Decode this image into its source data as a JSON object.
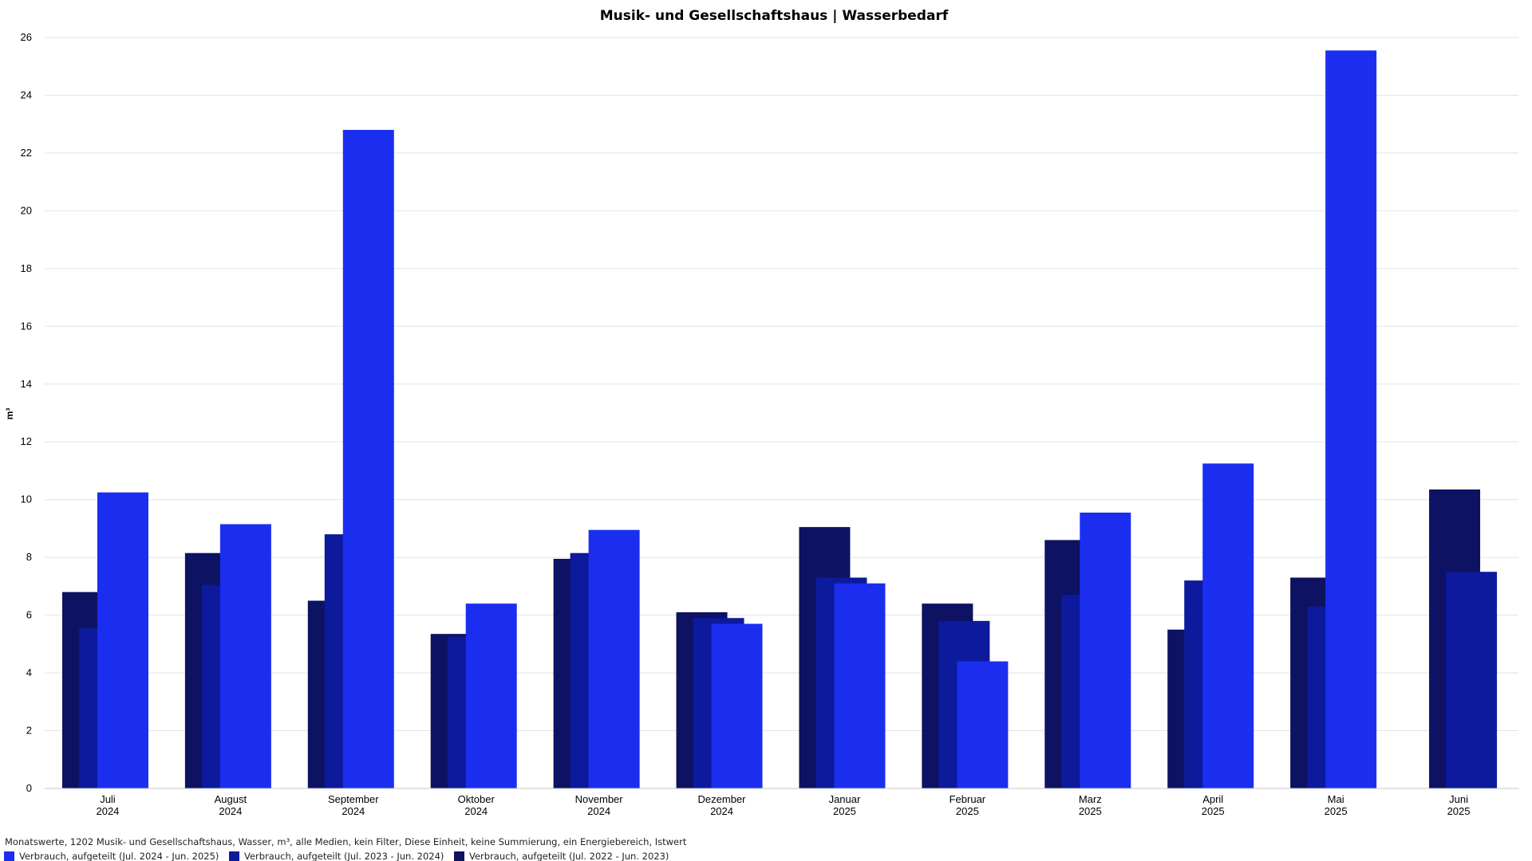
{
  "chart_data": {
    "type": "bar",
    "title": "Musik- und Gesellschaftshaus | Wasserbedarf",
    "ylabel": "m³",
    "xlabel": "",
    "ylim": [
      0,
      26
    ],
    "yticks": [
      0,
      2,
      4,
      6,
      8,
      10,
      12,
      14,
      16,
      18,
      20,
      22,
      24,
      26
    ],
    "grid": true,
    "legend_position": "bottom-left",
    "categories": [
      {
        "month": "Juli",
        "year": "2024"
      },
      {
        "month": "August",
        "year": "2024"
      },
      {
        "month": "September",
        "year": "2024"
      },
      {
        "month": "Oktober",
        "year": "2024"
      },
      {
        "month": "November",
        "year": "2024"
      },
      {
        "month": "Dezember",
        "year": "2024"
      },
      {
        "month": "Januar",
        "year": "2025"
      },
      {
        "month": "Februar",
        "year": "2025"
      },
      {
        "month": "Marz",
        "year": "2025"
      },
      {
        "month": "April",
        "year": "2025"
      },
      {
        "month": "Mai",
        "year": "2025"
      },
      {
        "month": "Juni",
        "year": "2025"
      }
    ],
    "series": [
      {
        "name": "Verbrauch, aufgeteilt (Jul. 2022 - Jun. 2023)",
        "color": "#0d1263",
        "values": [
          6.8,
          8.15,
          6.5,
          5.35,
          7.95,
          6.1,
          9.05,
          6.4,
          8.6,
          5.5,
          7.3,
          10.35
        ]
      },
      {
        "name": "Verbrauch, aufgeteilt (Jul. 2023 - Jun. 2024)",
        "color": "#0c1a9b",
        "values": [
          5.55,
          7.05,
          8.8,
          5.25,
          8.15,
          5.9,
          7.3,
          5.8,
          6.7,
          7.2,
          6.3,
          7.5
        ]
      },
      {
        "name": "Verbrauch, aufgeteilt (Jul. 2024 - Jun. 2025)",
        "color": "#1b2ef0",
        "values": [
          10.25,
          9.15,
          22.8,
          6.4,
          8.95,
          5.7,
          7.1,
          4.4,
          9.55,
          11.25,
          25.55,
          null
        ]
      }
    ]
  },
  "footer": {
    "description": "Monatswerte, 1202 Musik- und Gesellschaftshaus, Wasser, m³, alle Medien, kein Filter, Diese Einheit, keine Summierung, ein Energiebereich, Istwert"
  },
  "legend": [
    {
      "label": "Verbrauch, aufgeteilt (Jul. 2024 - Jun. 2025)",
      "color": "#1b2ef0"
    },
    {
      "label": "Verbrauch, aufgeteilt (Jul. 2023 - Jun. 2024)",
      "color": "#0c1a9b"
    },
    {
      "label": "Verbrauch, aufgeteilt (Jul. 2022 - Jun. 2023)",
      "color": "#0d1263"
    }
  ]
}
